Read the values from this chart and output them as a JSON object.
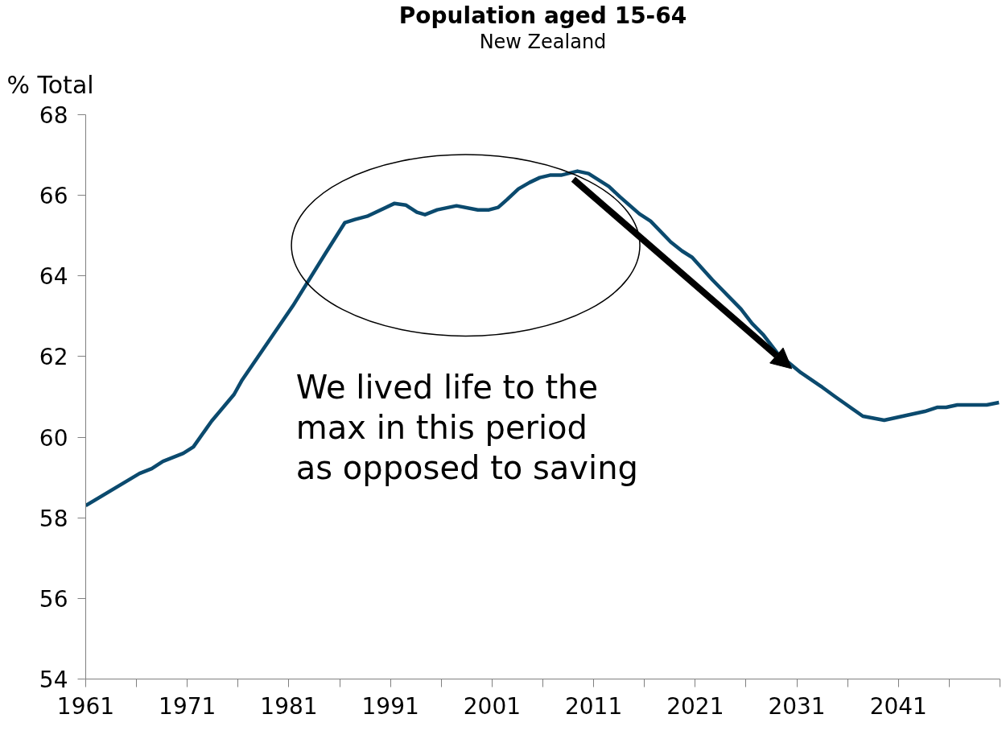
{
  "chart_data": {
    "type": "line",
    "title": "Population aged 15-64",
    "subtitle": "New Zealand",
    "ylabel": "% Total",
    "x": [
      1961,
      1966.3,
      1967.5,
      1968.6,
      1970.6,
      1971.6,
      1973.4,
      1974.8,
      1975.6,
      1976.4,
      1981.4,
      1984.5,
      1986.5,
      1987.5,
      1988.7,
      1991.4,
      1992.5,
      1993.6,
      1994.4,
      1995.6,
      1997.5,
      1999.6,
      2000.7,
      2001.6,
      2002.5,
      2003.6,
      2004.7,
      2005.7,
      2006.7,
      2007.8,
      2009.4,
      2010.5,
      2012.5,
      2013.6,
      2015.5,
      2016.6,
      2018.6,
      2019.7,
      2020.7,
      2022.7,
      2025.5,
      2026.6,
      2027.7,
      2029.1,
      2031.4,
      2033.5,
      2034.8,
      2035.7,
      2037.5,
      2039.6,
      2043.6,
      2044.8,
      2045.7,
      2046.8,
      2049.7,
      2050.9
    ],
    "series": [
      {
        "color": "#0b4a6e",
        "values": [
          58.3,
          59.1,
          59.22,
          59.4,
          59.6,
          59.76,
          60.4,
          60.82,
          61.06,
          61.42,
          63.26,
          64.52,
          65.32,
          65.4,
          65.48,
          65.8,
          65.76,
          65.58,
          65.52,
          65.64,
          65.74,
          65.64,
          65.64,
          65.7,
          65.9,
          66.16,
          66.32,
          66.44,
          66.5,
          66.5,
          66.6,
          66.54,
          66.22,
          65.96,
          65.54,
          65.36,
          64.84,
          64.62,
          64.46,
          63.9,
          63.18,
          62.82,
          62.54,
          62.08,
          61.6,
          61.24,
          61.0,
          60.84,
          60.52,
          60.42,
          60.64,
          60.74,
          60.74,
          60.8,
          60.8,
          60.86
        ]
      }
    ],
    "xlim": [
      1961,
      2051
    ],
    "xticks": [
      1961,
      {
        "value": 1966,
        "label": null
      },
      1971,
      {
        "value": 1976,
        "label": null
      },
      1981,
      {
        "value": 1986,
        "label": null
      },
      1991,
      {
        "value": 1996,
        "label": null
      },
      2001,
      {
        "value": 2006,
        "label": null
      },
      2011,
      {
        "value": 2016,
        "label": null
      },
      2021,
      {
        "value": 2026,
        "label": null
      },
      2031,
      {
        "value": 2036,
        "label": null
      },
      2041,
      {
        "value": 2046,
        "label": null
      },
      {
        "value": 2051,
        "label": null
      }
    ],
    "ylim": [
      54,
      68
    ],
    "yticks": [
      54,
      56,
      58,
      60,
      62,
      64,
      66,
      68
    ],
    "annotations": [
      "We lived life to the max in this period as opposed to saving"
    ],
    "grid": false,
    "marker": "none",
    "line_style": "solid"
  }
}
